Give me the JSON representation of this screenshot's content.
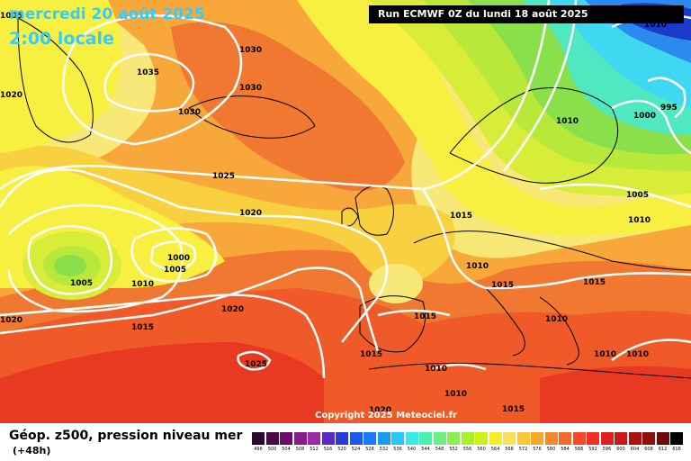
{
  "header": {
    "date_line": "mercredi 20 août 2025",
    "time_line": "2:00 locale",
    "run_label": "Run ECMWF 0Z du lundi 18 août 2025"
  },
  "copyright": "Copyright 2025 Meteociel.fr",
  "footer": {
    "title": "Géop. z500, pression niveau mer",
    "subtitle": "(+48h)"
  },
  "legend": {
    "values": [
      "496",
      "500",
      "504",
      "508",
      "512",
      "516",
      "520",
      "524",
      "528",
      "532",
      "536",
      "540",
      "544",
      "548",
      "552",
      "556",
      "560",
      "564",
      "568",
      "572",
      "576",
      "580",
      "584",
      "588",
      "592",
      "596",
      "600",
      "604",
      "608",
      "612",
      "616"
    ],
    "colors": [
      "#2a0a2a",
      "#4a0a4a",
      "#6e0a6e",
      "#8a1a8a",
      "#9a2aa8",
      "#5a2ac8",
      "#2a3ad8",
      "#1a5aee",
      "#1a7af8",
      "#1a9af8",
      "#2ac8f8",
      "#3ae8e8",
      "#4af0b0",
      "#6af080",
      "#8af050",
      "#aaf02a",
      "#d0f01a",
      "#f0f02a",
      "#f8e05a",
      "#f8c83a",
      "#f8a82a",
      "#f8882a",
      "#f8682a",
      "#f8482a",
      "#f03020",
      "#e02020",
      "#c81818",
      "#b01010",
      "#901010",
      "#700808",
      "#000000"
    ]
  },
  "map": {
    "colors": {
      "green": "#8ae04a",
      "light_green": "#b8e83a",
      "yellow_green": "#d8ec3a",
      "yellow": "#f8f040",
      "light_yellow": "#f8e878",
      "gold": "#f8d040",
      "orange": "#f8a83a",
      "dark_orange": "#f07830",
      "red_orange": "#f05a28",
      "red": "#e83a22",
      "cyan": "#40d8f0",
      "blue": "#2a8aee",
      "dark_blue": "#1a3aca",
      "teal": "#50e8c0",
      "isobar": "#ffffff",
      "coast": "#000000"
    },
    "pressure_labels": [
      "1035",
      "1030",
      "1030",
      "1030",
      "1020",
      "1025",
      "1020",
      "1000",
      "1005",
      "1005",
      "1010",
      "1015",
      "1020",
      "1020",
      "1025",
      "1015",
      "1010",
      "1015",
      "1015",
      "1015",
      "1010",
      "1010",
      "1020",
      "1015",
      "1015",
      "1010",
      "1010",
      "1010",
      "1005",
      "1010",
      "1000",
      "995",
      "1010",
      "1010",
      "1005"
    ]
  }
}
